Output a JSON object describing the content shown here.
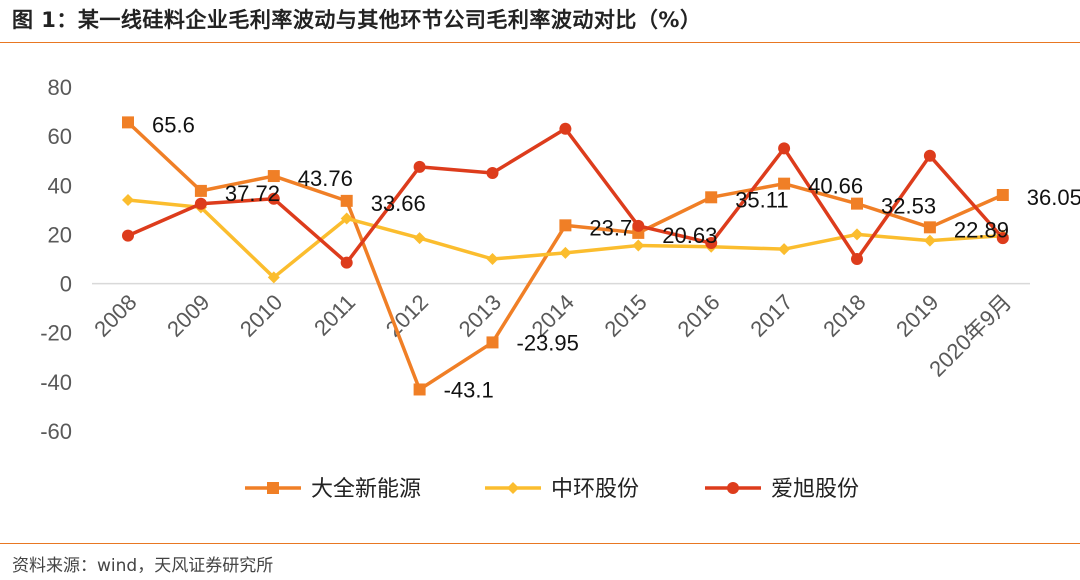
{
  "title": "图 1：某一线硅料企业毛利率波动与其他环节公司毛利率波动对比（%）",
  "source": "资料来源：wind，天风证券研究所",
  "chart_data": {
    "type": "line",
    "categories": [
      "2008",
      "2009",
      "2010",
      "2011",
      "2012",
      "2013",
      "2014",
      "2015",
      "2016",
      "2017",
      "2018",
      "2019",
      "2020年9月"
    ],
    "yticks": [
      "80",
      "60",
      "40",
      "20",
      "0",
      "-20",
      "-40",
      "-60"
    ],
    "ylim": [
      -60,
      80
    ],
    "grid": false,
    "legend_position": "bottom",
    "series": [
      {
        "name": "大全新能源",
        "color": "#f07f26",
        "marker": "square",
        "values": [
          65.6,
          37.72,
          43.76,
          33.66,
          -43.1,
          -23.95,
          23.7,
          20.63,
          35.11,
          40.66,
          32.53,
          22.89,
          36.05
        ],
        "labels": [
          "65.6",
          "37.72",
          "43.76",
          "33.66",
          "-43.1",
          "-23.95",
          "23.7",
          "20.63",
          "35.11",
          "40.66",
          "32.53",
          "22.89",
          "36.05"
        ]
      },
      {
        "name": "中环股份",
        "color": "#fbbd2e",
        "marker": "diamond",
        "values": [
          34,
          31,
          2.5,
          26.5,
          18.5,
          10,
          12.5,
          15.5,
          15,
          14,
          20,
          17.5,
          19.5
        ]
      },
      {
        "name": "爱旭股份",
        "color": "#dd3c1c",
        "marker": "circle",
        "values": [
          19.5,
          32.5,
          34.5,
          8.5,
          47.5,
          45,
          63,
          23.5,
          16.5,
          55,
          10,
          52,
          18.5
        ]
      }
    ]
  }
}
